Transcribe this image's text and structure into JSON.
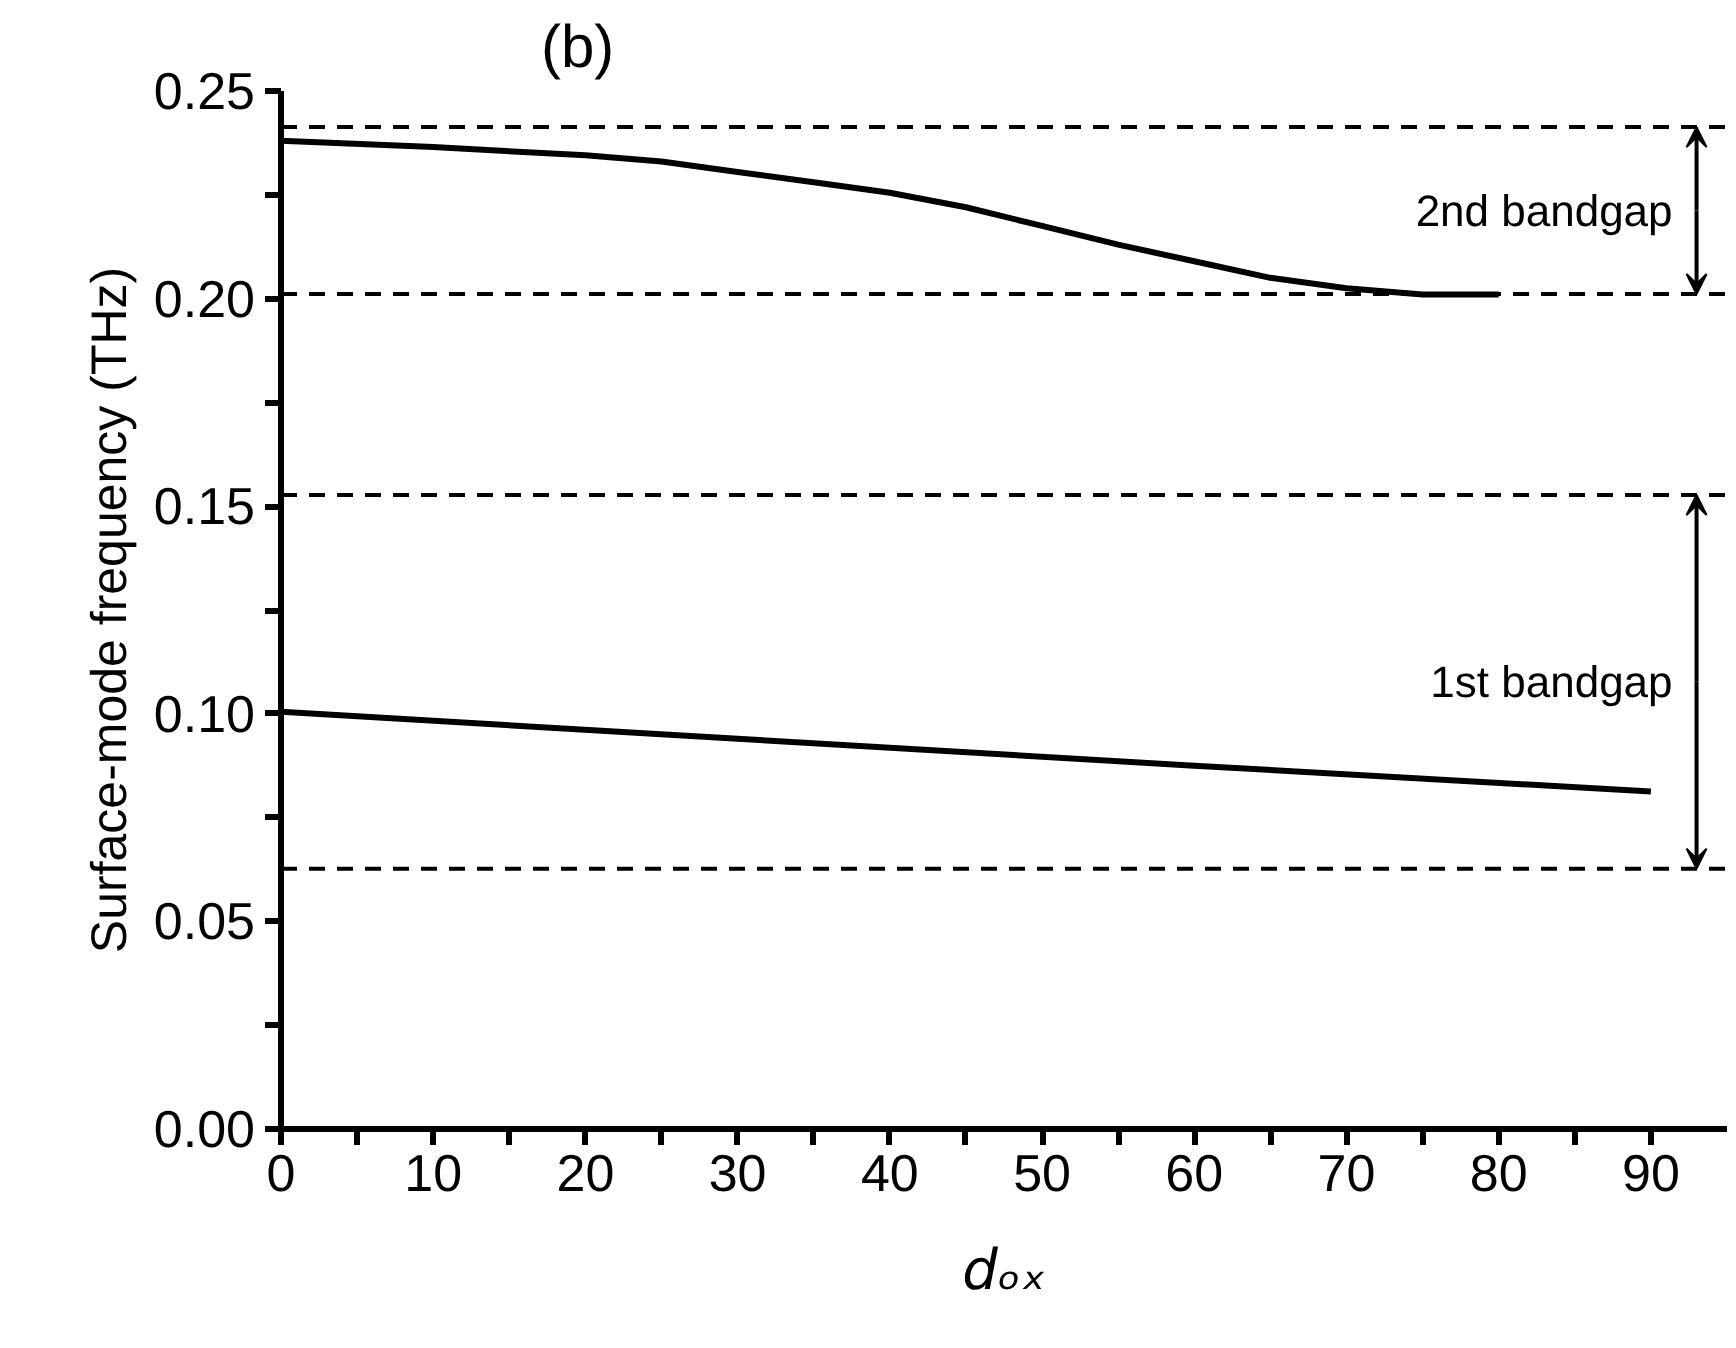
{
  "chart_data": {
    "type": "line",
    "title": "(b)",
    "xlabel": "dₒₓ",
    "ylabel": "Surface-mode frequency (THz)",
    "series": [
      {
        "color": "#000000",
        "x": [
          0,
          10,
          20,
          25,
          30,
          35,
          40,
          45,
          50,
          55,
          60,
          65,
          70,
          75,
          80
        ],
        "values": [
          0.238,
          0.2365,
          0.2345,
          0.233,
          0.2305,
          0.228,
          0.2255,
          0.222,
          0.2175,
          0.213,
          0.209,
          0.205,
          0.2025,
          0.201,
          0.201
        ]
      },
      {
        "color": "#000000",
        "x": [
          0,
          30,
          60,
          90
        ],
        "values": [
          0.1005,
          0.094,
          0.0875,
          0.0813
        ]
      }
    ],
    "xlim": [
      0,
      95
    ],
    "ylim": [
      0,
      0.25
    ],
    "xticks": [
      0,
      {
        "value": 5,
        "label": null
      },
      10,
      {
        "value": 15,
        "label": null
      },
      20,
      {
        "value": 25,
        "label": null
      },
      30,
      {
        "value": 35,
        "label": null
      },
      40,
      {
        "value": 45,
        "label": null
      },
      50,
      {
        "value": 55,
        "label": null
      },
      60,
      {
        "value": 65,
        "label": null
      },
      70,
      {
        "value": 75,
        "label": null
      },
      80,
      {
        "value": 85,
        "label": null
      },
      90
    ],
    "yticks": [
      {
        "value": 0,
        "label": "0.00"
      },
      {
        "value": 0.025,
        "label": null
      },
      {
        "value": 0.05,
        "label": "0.05"
      },
      {
        "value": 0.075,
        "label": null
      },
      {
        "value": 0.1,
        "label": "0.10"
      },
      {
        "value": 0.125,
        "label": null
      },
      {
        "value": 0.15,
        "label": "0.15"
      },
      {
        "value": 0.175,
        "label": null
      },
      {
        "value": 0.2,
        "label": "0.20"
      },
      {
        "value": 0.225,
        "label": null
      },
      {
        "value": 0.25,
        "label": "0.25"
      }
    ],
    "ref_lines": [
      {
        "axis": "y",
        "value": 0.2413,
        "line_style": "dashed",
        "color": "#000000"
      },
      {
        "axis": "y",
        "value": 0.2011,
        "line_style": "dashed",
        "color": "#000000"
      },
      {
        "axis": "y",
        "value": 0.1527,
        "line_style": "dashed",
        "color": "#000000"
      },
      {
        "axis": "y",
        "value": 0.0627,
        "line_style": "dashed",
        "color": "#000000"
      }
    ],
    "annotations": [
      {
        "text": "2nd bandgap",
        "x": 93,
        "y": 0.2413
      },
      {
        "text": "1st bandgap",
        "x": 93,
        "y": 0.1527
      }
    ],
    "grid": false,
    "marker": "none",
    "line_style": "solid"
  }
}
